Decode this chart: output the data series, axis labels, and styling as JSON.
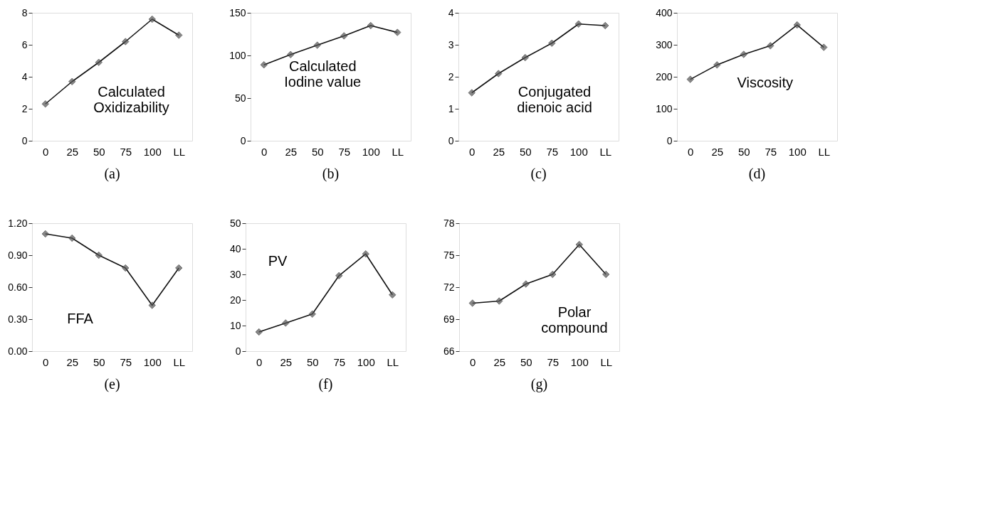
{
  "chart_data": [
    {
      "type": "line",
      "categories": [
        "0",
        "25",
        "50",
        "75",
        "100",
        "LL"
      ],
      "marker": "diamond",
      "grid": false,
      "ylim": [
        0,
        8
      ],
      "yticks": [
        0,
        2,
        4,
        6,
        8
      ],
      "annotations": [
        "Calculated\nOxidizability",
        "(a)"
      ],
      "series": [
        {
          "color": "#555555",
          "values": [
            2.3,
            3.7,
            4.9,
            6.2,
            7.6,
            6.6
          ]
        }
      ]
    },
    {
      "type": "line",
      "categories": [
        "0",
        "25",
        "50",
        "75",
        "100",
        "LL"
      ],
      "marker": "diamond",
      "grid": false,
      "ylim": [
        0,
        150
      ],
      "yticks": [
        0,
        50,
        100,
        150
      ],
      "annotations": [
        "Calculated\nIodine value",
        "(b)"
      ],
      "series": [
        {
          "color": "#555555",
          "values": [
            89,
            101,
            112,
            123,
            135,
            127
          ]
        }
      ]
    },
    {
      "type": "line",
      "categories": [
        "0",
        "25",
        "50",
        "75",
        "100",
        "LL"
      ],
      "marker": "diamond",
      "grid": false,
      "ylim": [
        0,
        4
      ],
      "yticks": [
        0,
        1,
        2,
        3,
        4
      ],
      "annotations": [
        "Conjugated\ndienoic acid",
        "(c)"
      ],
      "series": [
        {
          "color": "#555555",
          "values": [
            1.5,
            2.1,
            2.6,
            3.05,
            3.65,
            3.6
          ]
        }
      ]
    },
    {
      "type": "line",
      "categories": [
        "0",
        "25",
        "50",
        "75",
        "100",
        "LL"
      ],
      "marker": "diamond",
      "grid": false,
      "ylim": [
        0,
        400
      ],
      "yticks": [
        0,
        100,
        200,
        300,
        400
      ],
      "annotations": [
        "Viscosity",
        "(d)"
      ],
      "series": [
        {
          "color": "#555555",
          "values": [
            192,
            237,
            270,
            297,
            362,
            292
          ]
        }
      ]
    },
    {
      "type": "line",
      "categories": [
        "0",
        "25",
        "50",
        "75",
        "100",
        "LL"
      ],
      "marker": "diamond",
      "grid": false,
      "ylim": [
        0,
        1.2
      ],
      "yticks": [
        {
          "value": 0,
          "label": "0.00"
        },
        {
          "value": 0.3,
          "label": "0.30"
        },
        {
          "value": 0.6,
          "label": "0.60"
        },
        {
          "value": 0.9,
          "label": "0.90"
        },
        {
          "value": 1.2,
          "label": "1.20"
        }
      ],
      "annotations": [
        "FFA",
        "(e)"
      ],
      "series": [
        {
          "color": "#555555",
          "values": [
            1.1,
            1.06,
            0.9,
            0.78,
            0.43,
            0.78
          ]
        }
      ]
    },
    {
      "type": "line",
      "categories": [
        "0",
        "25",
        "50",
        "75",
        "100",
        "LL"
      ],
      "marker": "diamond",
      "grid": false,
      "ylim": [
        0,
        50
      ],
      "yticks": [
        0,
        10,
        20,
        30,
        40,
        50
      ],
      "annotations": [
        "PV",
        "(f)"
      ],
      "series": [
        {
          "color": "#555555",
          "values": [
            7.5,
            11,
            14.5,
            29.5,
            38,
            22
          ]
        }
      ]
    },
    {
      "type": "line",
      "categories": [
        "0",
        "25",
        "50",
        "75",
        "100",
        "LL"
      ],
      "marker": "diamond",
      "grid": false,
      "ylim": [
        66,
        78
      ],
      "yticks": [
        66,
        69,
        72,
        75,
        78
      ],
      "annotations": [
        "Polar\ncompound",
        "(g)"
      ],
      "series": [
        {
          "color": "#555555",
          "values": [
            70.5,
            70.7,
            72.3,
            73.2,
            76,
            73.2
          ]
        }
      ]
    }
  ]
}
